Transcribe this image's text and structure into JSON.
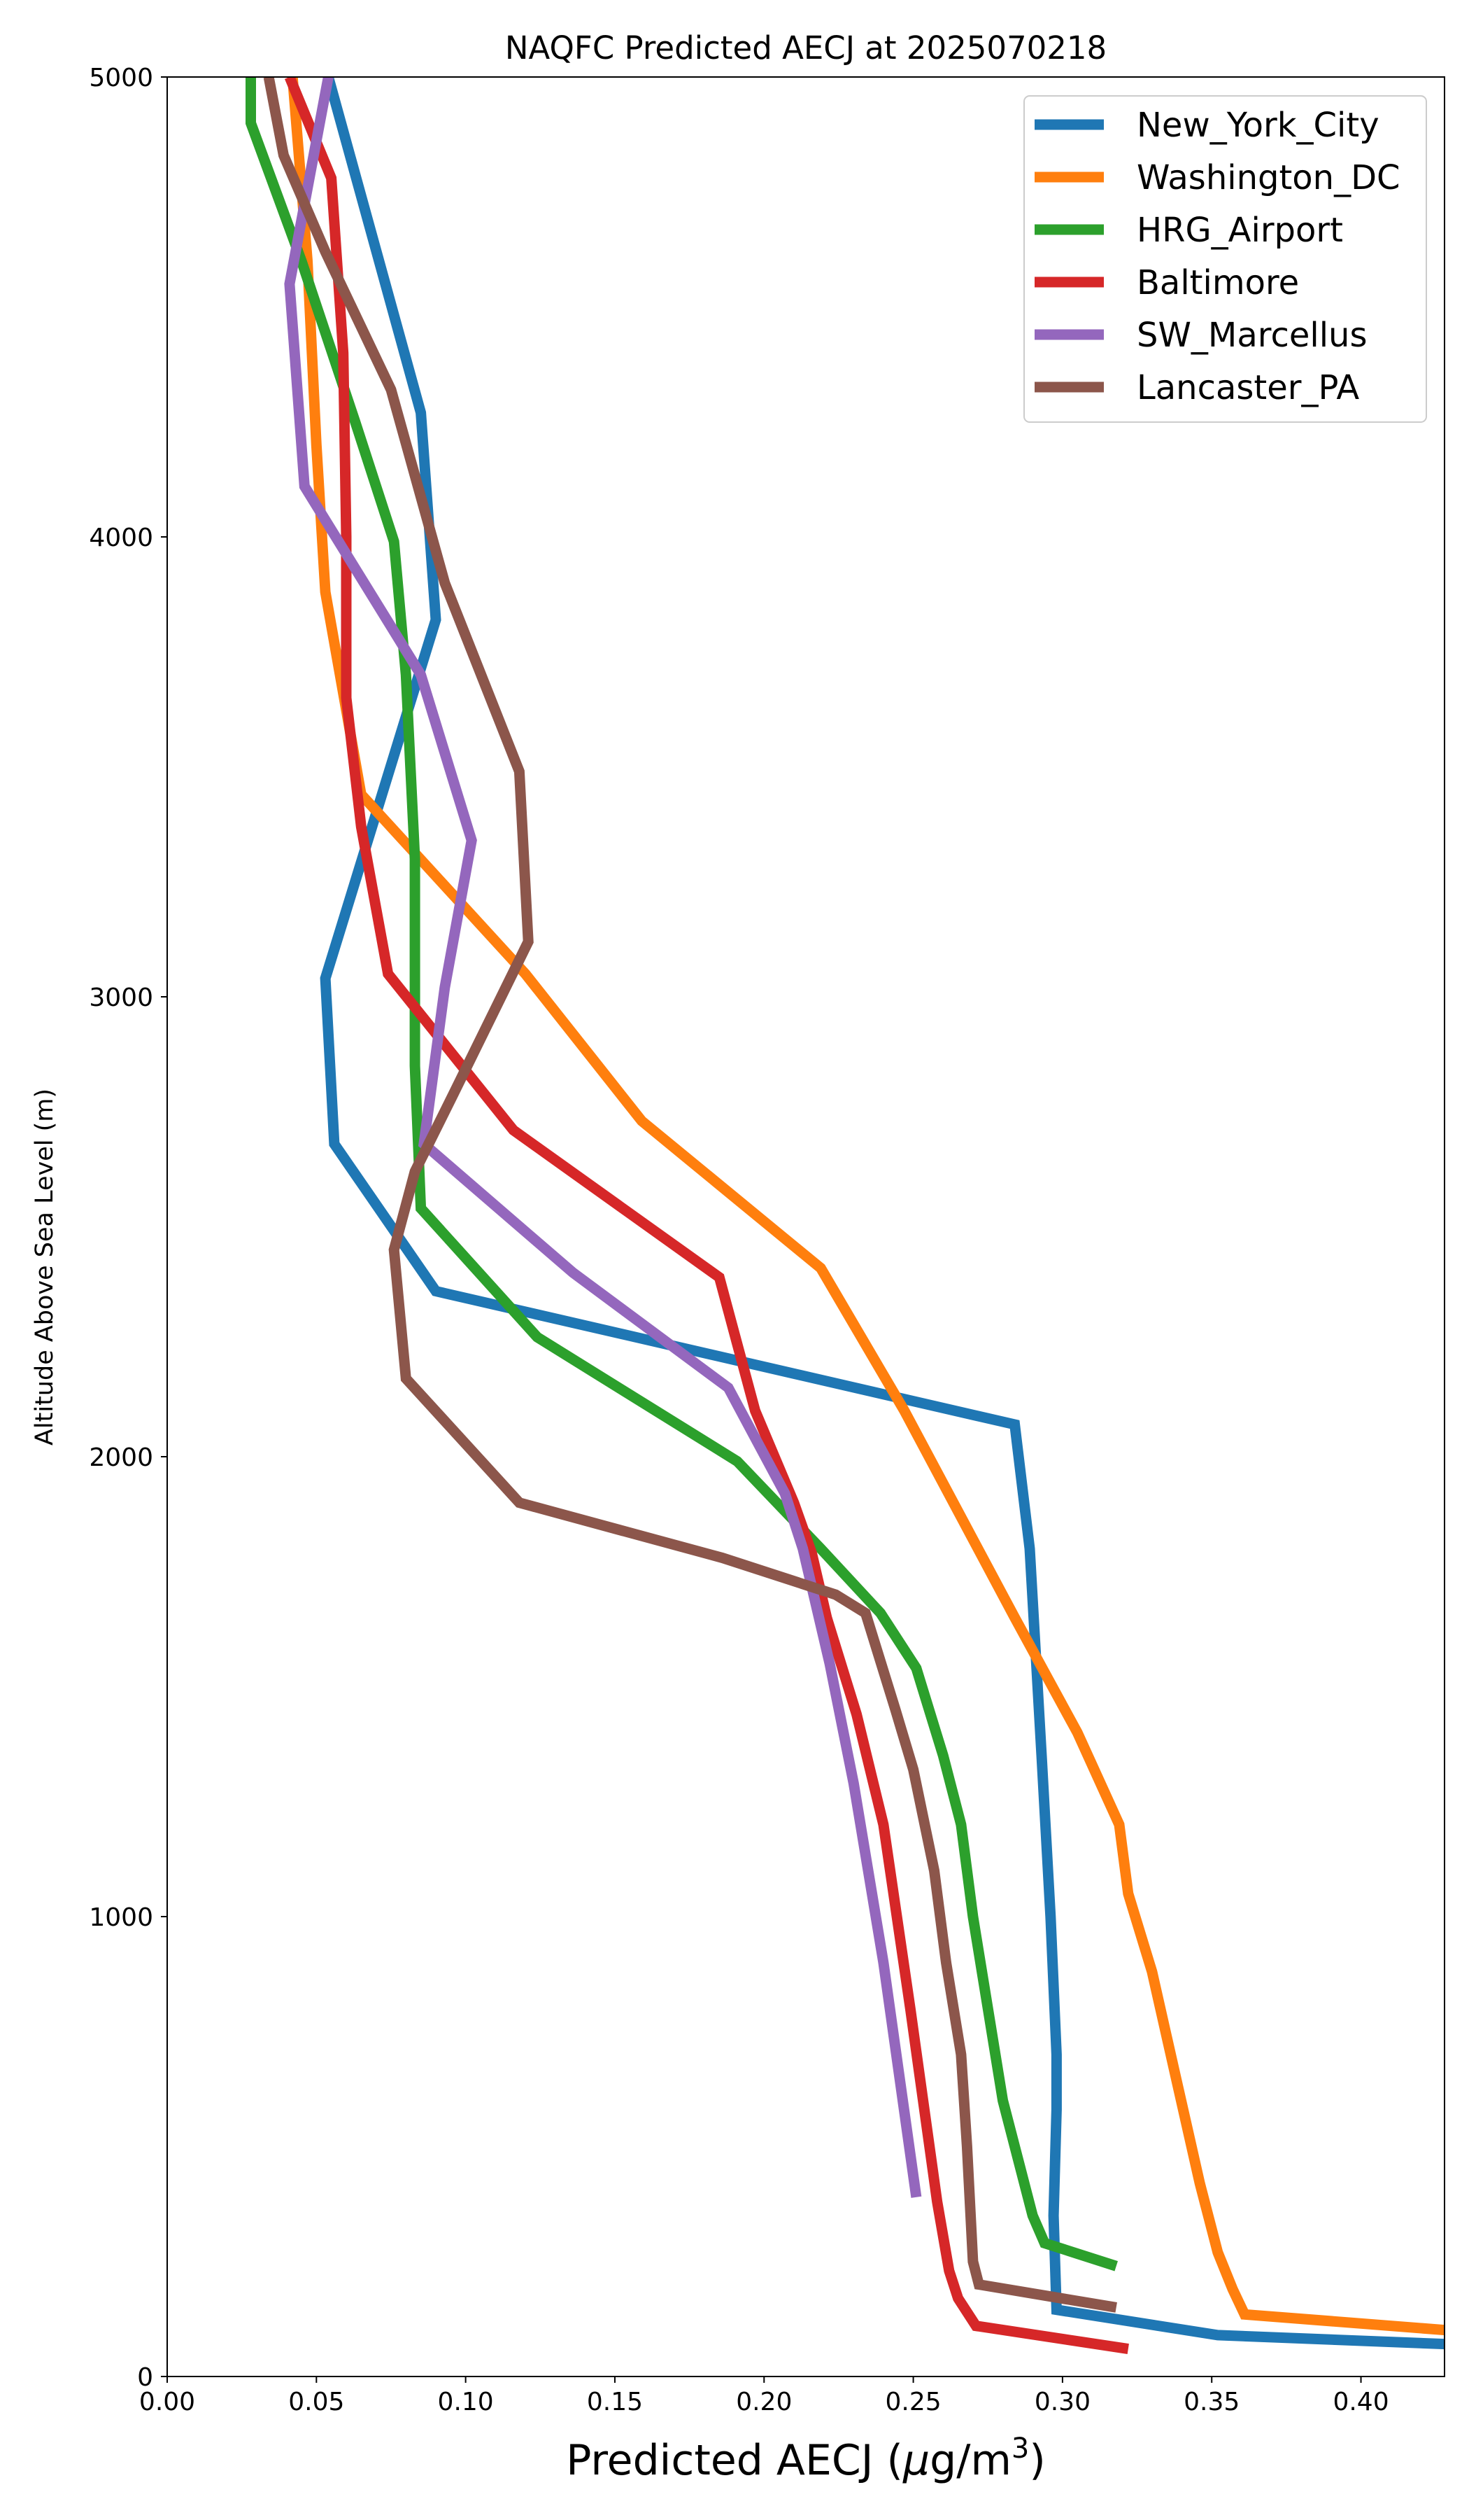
{
  "chart_data": {
    "type": "line",
    "title": "NAQFC Predicted AECJ at 2025070218",
    "xlabel_prefix": "Predicted AECJ (",
    "xlabel_mu": "μ",
    "xlabel_unit": "g/m",
    "xlabel_sup": "3",
    "xlabel_suffix": ")",
    "ylabel": "Altitude Above Sea Level (m)",
    "xlim": [
      0.0,
      0.428
    ],
    "ylim": [
      0,
      5000
    ],
    "xticks": [
      0.0,
      0.05,
      0.1,
      0.15,
      0.2,
      0.25,
      0.3,
      0.35,
      0.4
    ],
    "xtick_labels": [
      "0.00",
      "0.05",
      "0.10",
      "0.15",
      "0.20",
      "0.25",
      "0.30",
      "0.35",
      "0.40"
    ],
    "yticks": [
      0,
      1000,
      2000,
      3000,
      4000,
      5000
    ],
    "ytick_labels": [
      "0",
      "1000",
      "2000",
      "3000",
      "4000",
      "5000"
    ],
    "grid": false,
    "legend_position": "top-right",
    "series": [
      {
        "name": "New_York_City",
        "color": "#1f77b4",
        "points": [
          [
            0.43,
            70
          ],
          [
            0.352,
            90
          ],
          [
            0.298,
            145
          ],
          [
            0.297,
            350
          ],
          [
            0.298,
            580
          ],
          [
            0.298,
            700
          ],
          [
            0.296,
            1000
          ],
          [
            0.293,
            1350
          ],
          [
            0.289,
            1800
          ],
          [
            0.284,
            2070
          ],
          [
            0.09,
            2360
          ],
          [
            0.056,
            2680
          ],
          [
            0.053,
            3040
          ],
          [
            0.09,
            3820
          ],
          [
            0.085,
            4270
          ],
          [
            0.054,
            5000
          ]
        ]
      },
      {
        "name": "Washington_DC",
        "color": "#ff7f0e",
        "points": [
          [
            0.43,
            100
          ],
          [
            0.361,
            135
          ],
          [
            0.357,
            190
          ],
          [
            0.352,
            270
          ],
          [
            0.346,
            420
          ],
          [
            0.338,
            650
          ],
          [
            0.33,
            880
          ],
          [
            0.322,
            1050
          ],
          [
            0.319,
            1200
          ],
          [
            0.305,
            1400
          ],
          [
            0.284,
            1650
          ],
          [
            0.247,
            2100
          ],
          [
            0.219,
            2410
          ],
          [
            0.159,
            2730
          ],
          [
            0.12,
            3050
          ],
          [
            0.065,
            3440
          ],
          [
            0.053,
            3880
          ],
          [
            0.05,
            4200
          ],
          [
            0.047,
            4600
          ],
          [
            0.042,
            5000
          ]
        ]
      },
      {
        "name": "HRG_Airport",
        "color": "#2ca02c",
        "points": [
          [
            0.318,
            240
          ],
          [
            0.294,
            290
          ],
          [
            0.29,
            350
          ],
          [
            0.28,
            600
          ],
          [
            0.27,
            1000
          ],
          [
            0.266,
            1200
          ],
          [
            0.26,
            1350
          ],
          [
            0.251,
            1540
          ],
          [
            0.239,
            1660
          ],
          [
            0.219,
            1800
          ],
          [
            0.191,
            1990
          ],
          [
            0.124,
            2260
          ],
          [
            0.085,
            2540
          ],
          [
            0.083,
            2850
          ],
          [
            0.083,
            3300
          ],
          [
            0.08,
            3700
          ],
          [
            0.076,
            3990
          ],
          [
            0.063,
            4250
          ],
          [
            0.045,
            4600
          ],
          [
            0.028,
            4900
          ],
          [
            0.028,
            5000
          ]
        ]
      },
      {
        "name": "Baltimore",
        "color": "#d62728",
        "points": [
          [
            0.322,
            60
          ],
          [
            0.271,
            110
          ],
          [
            0.265,
            170
          ],
          [
            0.262,
            230
          ],
          [
            0.258,
            380
          ],
          [
            0.249,
            800
          ],
          [
            0.24,
            1200
          ],
          [
            0.231,
            1440
          ],
          [
            0.221,
            1650
          ],
          [
            0.216,
            1790
          ],
          [
            0.21,
            1900
          ],
          [
            0.197,
            2100
          ],
          [
            0.185,
            2390
          ],
          [
            0.116,
            2710
          ],
          [
            0.074,
            3050
          ],
          [
            0.065,
            3370
          ],
          [
            0.06,
            3650
          ],
          [
            0.06,
            4000
          ],
          [
            0.059,
            4400
          ],
          [
            0.055,
            4780
          ],
          [
            0.041,
            5000
          ]
        ]
      },
      {
        "name": "SW_Marcellus",
        "color": "#9467bd",
        "points": [
          [
            0.251,
            390
          ],
          [
            0.24,
            900
          ],
          [
            0.23,
            1290
          ],
          [
            0.222,
            1550
          ],
          [
            0.213,
            1800
          ],
          [
            0.207,
            1920
          ],
          [
            0.188,
            2150
          ],
          [
            0.136,
            2400
          ],
          [
            0.086,
            2680
          ],
          [
            0.093,
            3020
          ],
          [
            0.102,
            3340
          ],
          [
            0.085,
            3700
          ],
          [
            0.046,
            4110
          ],
          [
            0.041,
            4550
          ],
          [
            0.054,
            5000
          ]
        ]
      },
      {
        "name": "Lancaster_PA",
        "color": "#8c564b",
        "points": [
          [
            0.318,
            150
          ],
          [
            0.272,
            200
          ],
          [
            0.27,
            250
          ],
          [
            0.268,
            500
          ],
          [
            0.266,
            700
          ],
          [
            0.261,
            900
          ],
          [
            0.257,
            1100
          ],
          [
            0.25,
            1320
          ],
          [
            0.244,
            1450
          ],
          [
            0.234,
            1660
          ],
          [
            0.224,
            1700
          ],
          [
            0.186,
            1780
          ],
          [
            0.118,
            1900
          ],
          [
            0.08,
            2170
          ],
          [
            0.076,
            2450
          ],
          [
            0.083,
            2620
          ],
          [
            0.096,
            2790
          ],
          [
            0.121,
            3120
          ],
          [
            0.118,
            3490
          ],
          [
            0.093,
            3900
          ],
          [
            0.075,
            4320
          ],
          [
            0.053,
            4620
          ],
          [
            0.039,
            4830
          ],
          [
            0.034,
            5000
          ]
        ]
      }
    ]
  }
}
